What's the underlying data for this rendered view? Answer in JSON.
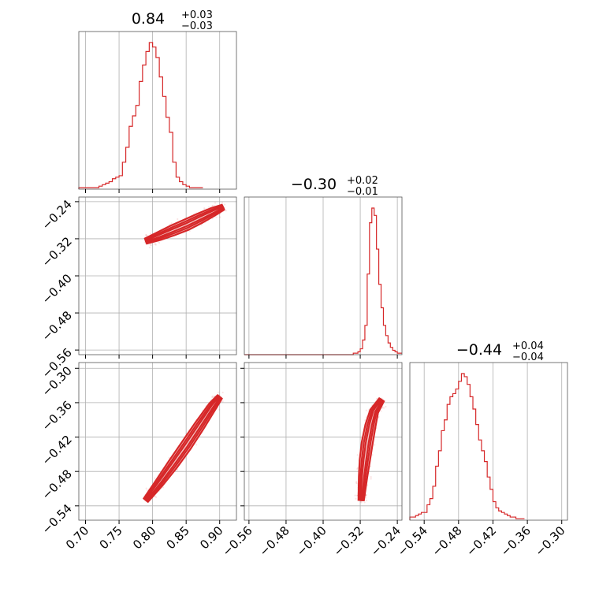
{
  "style": {
    "accent": "#d62728",
    "fill_light": "#f2c4c4",
    "grid": "#b0b0b0",
    "frame": "#555555"
  },
  "chart_data": {
    "type": "corner",
    "n_params": 3,
    "axes": [
      {
        "lim": [
          0.69,
          0.925
        ],
        "ticks": [
          0.7,
          0.75,
          0.8,
          0.85,
          0.9
        ],
        "tick_labels": [
          "0.70",
          "0.75",
          "0.80",
          "0.85",
          "0.90"
        ]
      },
      {
        "lim": [
          -0.57,
          -0.23
        ],
        "ticks": [
          -0.56,
          -0.48,
          -0.4,
          -0.32,
          -0.24
        ],
        "tick_labels": [
          "−0.56",
          "−0.48",
          "−0.40",
          "−0.32",
          "−0.24"
        ]
      },
      {
        "lim": [
          -0.565,
          -0.29
        ],
        "ticks": [
          -0.54,
          -0.48,
          -0.42,
          -0.36,
          -0.3
        ],
        "tick_labels": [
          "−0.54",
          "−0.48",
          "−0.42",
          "−0.36",
          "−0.30"
        ]
      }
    ],
    "titles": [
      {
        "value": "0.84",
        "plus": "+0.03",
        "minus": "−0.03"
      },
      {
        "value": "−0.30",
        "plus": "+0.02",
        "minus": "−0.01"
      },
      {
        "value": "−0.44",
        "plus": "+0.04",
        "minus": "−0.04"
      }
    ],
    "histograms": [
      {
        "param": 0,
        "edges_start": 0.69,
        "bin_width": 0.005,
        "counts": [
          1,
          1,
          1,
          1,
          1,
          1,
          2,
          3,
          4,
          5,
          7,
          8,
          9,
          18,
          28,
          42,
          49,
          56,
          72,
          83,
          92,
          98,
          95,
          88,
          75,
          62,
          48,
          38,
          18,
          8,
          5,
          3,
          2,
          1,
          1,
          1,
          1
        ]
      },
      {
        "param": 1,
        "edges_start": -0.57,
        "bin_width": 0.005,
        "counts": [
          0,
          0,
          0,
          0,
          0,
          0,
          0,
          0,
          0,
          0,
          0,
          0,
          0,
          0,
          0,
          0,
          0,
          0,
          0,
          0,
          0,
          0,
          0,
          0,
          0,
          0,
          0,
          0,
          0,
          0,
          0,
          0,
          0,
          0,
          0,
          0,
          0,
          0,
          0,
          0,
          0,
          0,
          0,
          0,
          0,
          0,
          0,
          1,
          1,
          2,
          4,
          10,
          20,
          55,
          90,
          100,
          95,
          72,
          48,
          32,
          20,
          13,
          8,
          5,
          3,
          2,
          1,
          1
        ]
      },
      {
        "param": 2,
        "edges_start": -0.565,
        "bin_width": 0.005,
        "counts": [
          2,
          2,
          3,
          4,
          5,
          5,
          10,
          14,
          22,
          35,
          45,
          58,
          65,
          75,
          80,
          82,
          85,
          90,
          95,
          93,
          88,
          80,
          72,
          62,
          52,
          45,
          38,
          28,
          20,
          12,
          8,
          6,
          5,
          4,
          3,
          2,
          2,
          1,
          1,
          1
        ]
      }
    ],
    "pairs": [
      {
        "x_param": 0,
        "y_param": 1,
        "ridge": [
          [
            0.79,
            -0.325
          ],
          [
            0.81,
            -0.314
          ],
          [
            0.83,
            -0.302
          ],
          [
            0.85,
            -0.29
          ],
          [
            0.87,
            -0.276
          ],
          [
            0.89,
            -0.262
          ],
          [
            0.905,
            -0.252
          ]
        ],
        "cloud_extent": [
          [
            0.74,
            -0.33
          ],
          [
            0.925,
            -0.23
          ]
        ]
      },
      {
        "x_param": 0,
        "y_param": 2,
        "ridge": [
          [
            0.79,
            -0.53
          ],
          [
            0.81,
            -0.5
          ],
          [
            0.83,
            -0.468
          ],
          [
            0.85,
            -0.435
          ],
          [
            0.87,
            -0.4
          ],
          [
            0.89,
            -0.365
          ],
          [
            0.9,
            -0.35
          ]
        ],
        "cloud_extent": [
          [
            0.74,
            -0.565
          ],
          [
            0.925,
            -0.295
          ]
        ]
      },
      {
        "x_param": 1,
        "y_param": 2,
        "ridge": [
          [
            -0.318,
            -0.53
          ],
          [
            -0.314,
            -0.49
          ],
          [
            -0.31,
            -0.46
          ],
          [
            -0.305,
            -0.43
          ],
          [
            -0.298,
            -0.4
          ],
          [
            -0.29,
            -0.375
          ],
          [
            -0.274,
            -0.355
          ]
        ],
        "cloud_extent": [
          [
            -0.33,
            -0.56
          ],
          [
            -0.23,
            -0.3
          ]
        ]
      }
    ]
  }
}
